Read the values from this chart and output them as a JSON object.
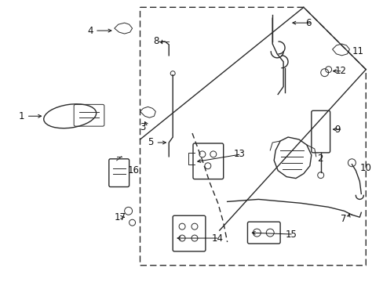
{
  "background_color": "#ffffff",
  "line_color": "#2a2a2a",
  "label_color": "#111111",
  "figsize": [
    4.89,
    3.6
  ],
  "dpi": 100,
  "xlim": [
    0,
    489
  ],
  "ylim": [
    0,
    360
  ]
}
